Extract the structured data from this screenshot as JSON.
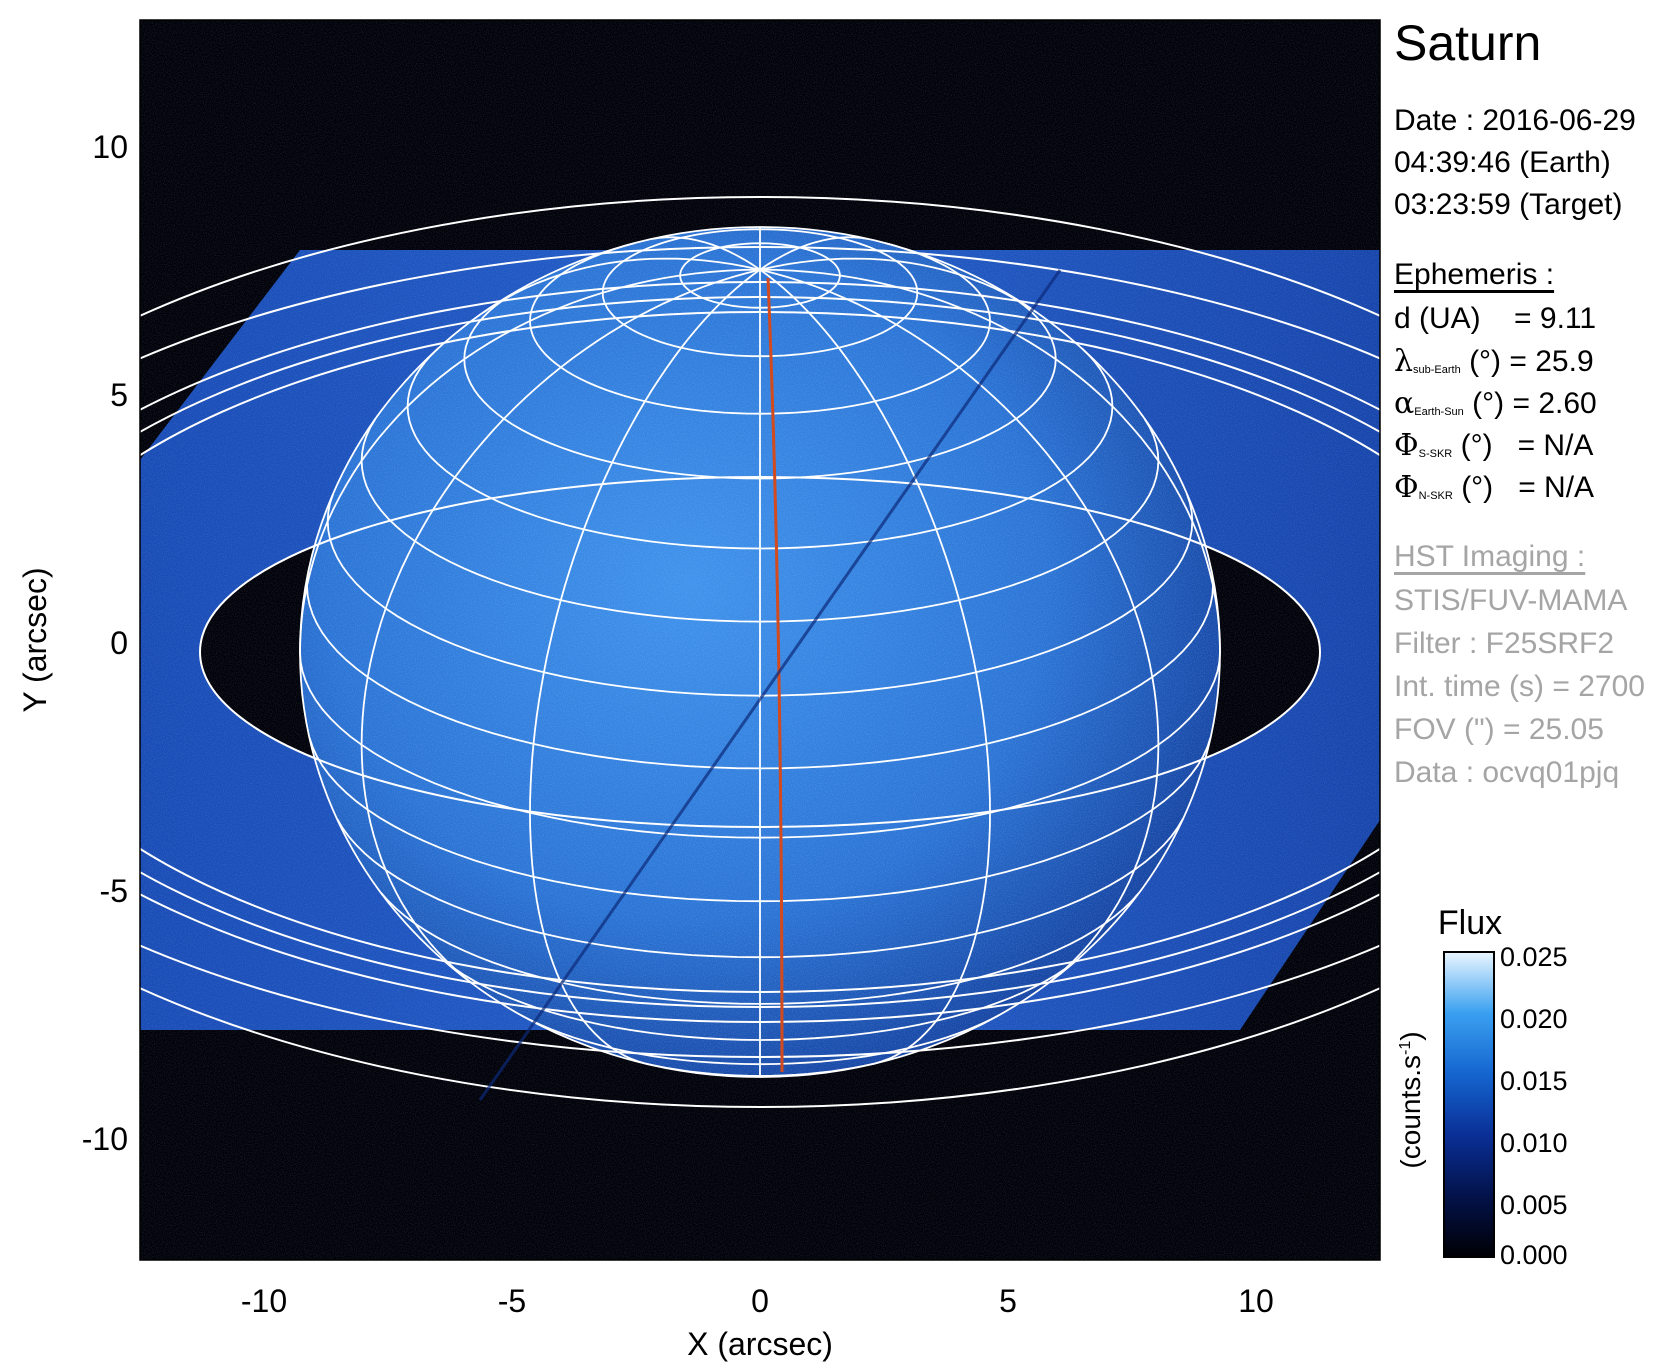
{
  "figure": {
    "target": "Saturn",
    "xlabel": "X (arcsec)",
    "ylabel": "Y (arcsec)",
    "xticks": [
      "-10",
      "-5",
      "0",
      "5",
      "10"
    ],
    "yticks": [
      "10",
      "5",
      "0",
      "-5",
      "-10"
    ],
    "xlim": [
      -12.5,
      12.5
    ],
    "ylim": [
      -12.5,
      12.5
    ]
  },
  "observation": {
    "date_line": "Date : 2016-06-29",
    "earth_time": "04:39:46 (Earth)",
    "target_time": "03:23:59 (Target)"
  },
  "ephemeris": {
    "heading": "Ephemeris :",
    "distance": {
      "label": "d (UA)",
      "value": "= 9.11"
    },
    "lat_sub_earth": {
      "symbol": "λ",
      "sub": "sub-Earth",
      "unit": "(°)",
      "value": "= 25.9"
    },
    "phase_angle": {
      "symbol": "α",
      "sub": "Earth-Sun",
      "unit": "(°)",
      "value": "= 2.60"
    },
    "s_skr": {
      "symbol": "Φ",
      "sub": "S-SKR",
      "unit": "(°)",
      "value": "= N/A"
    },
    "n_skr": {
      "symbol": "Φ",
      "sub": "N-SKR",
      "unit": "(°)",
      "value": "= N/A"
    }
  },
  "imaging": {
    "heading": "HST Imaging :",
    "instrument": "STIS/FUV-MAMA",
    "filter": "Filter : F25SRF2",
    "int_time": "Int. time (s) = 2700",
    "fov": "FOV (\") = 25.05",
    "data": "Data : ocvq01pjq"
  },
  "colorbar": {
    "title": "Flux",
    "label_main": "(counts.s",
    "label_sup": "-1",
    "label_end": ")",
    "ticks": [
      "0.025",
      "0.020",
      "0.015",
      "0.010",
      "0.005",
      "0.000"
    ],
    "range": [
      0.0,
      0.025
    ]
  },
  "colors": {
    "background": "#000008",
    "planet": "#2f7fe0",
    "ring": "#1e56c8",
    "grid": "#ffffff",
    "meridian": "#d24a1e"
  }
}
